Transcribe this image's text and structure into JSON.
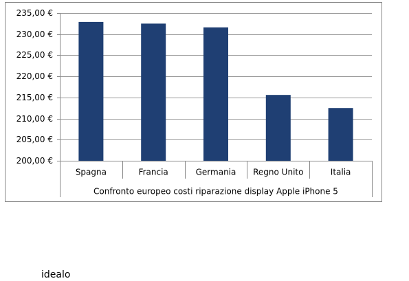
{
  "chart_data": {
    "type": "bar",
    "x_label": "Confronto europeo costi riparazione display Apple iPhone 5",
    "categories": [
      "Spagna",
      "Francia",
      "Germania",
      "Regno Unito",
      "Italia"
    ],
    "values": [
      232.9,
      232.5,
      231.6,
      215.6,
      212.5
    ],
    "color": "#1f3f73",
    "ylim": [
      200,
      235
    ],
    "yticks": [
      {
        "value": 200,
        "label": "200,00 €"
      },
      {
        "value": 205,
        "label": "205,00 €"
      },
      {
        "value": 210,
        "label": "210,00 €"
      },
      {
        "value": 215,
        "label": "215,00 €"
      },
      {
        "value": 220,
        "label": "220,00 €"
      },
      {
        "value": 225,
        "label": "225,00 €"
      },
      {
        "value": 230,
        "label": "230,00 €"
      },
      {
        "value": 235,
        "label": "235,00 €"
      }
    ],
    "grid": true,
    "source": "idealo"
  }
}
